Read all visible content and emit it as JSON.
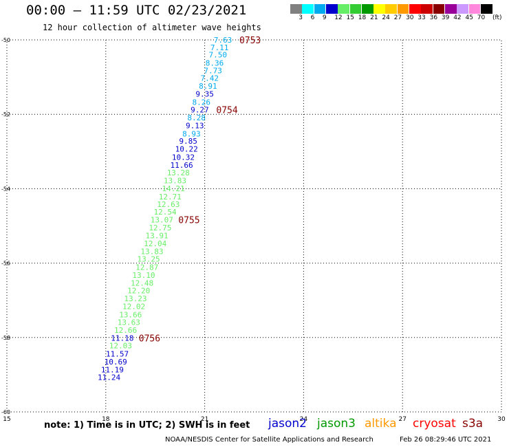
{
  "header": {
    "title": "00:00 – 11:59 UTC 02/23/2021",
    "subtitle": "12 hour collection of altimeter wave heights"
  },
  "legend": {
    "colors": [
      "#808080",
      "#00ffff",
      "#00aaee",
      "#0000cc",
      "#66ee66",
      "#33cc33",
      "#009900",
      "#ffff00",
      "#ffcc00",
      "#ff9900",
      "#ff0000",
      "#cc0000",
      "#880000",
      "#990099",
      "#cc99ff",
      "#ff88dd",
      "#000000"
    ],
    "labels": [
      "3",
      "6",
      "9",
      "12",
      "15",
      "18",
      "21",
      "24",
      "27",
      "30",
      "33",
      "36",
      "39",
      "42",
      "45",
      "70"
    ],
    "unit": "(ft)"
  },
  "footer": {
    "note": "note:  1) Time is in UTC;  2) SWH is in feet",
    "satellites": [
      {
        "name": "jason2",
        "color": "#0000cc"
      },
      {
        "name": "jason3",
        "color": "#009900"
      },
      {
        "name": "altika",
        "color": "#ff9900"
      },
      {
        "name": "cryosat",
        "color": "#ff0000"
      },
      {
        "name": "s3a",
        "color": "#880000"
      }
    ],
    "credit": "NOAA/NESDIS Center for Satellite Applications and Research",
    "timestamp": "Feb 26 08:29:46 UTC 2021"
  },
  "chart_data": {
    "type": "scatter",
    "title": "00:00 – 11:59 UTC 02/23/2021",
    "subtitle": "12 hour collection of altimeter wave heights",
    "xlim": [
      15,
      30
    ],
    "ylim": [
      -60,
      -50
    ],
    "xticks": [
      "15",
      "18",
      "21",
      "24",
      "27",
      "30"
    ],
    "yticks": [
      "-50",
      "-52",
      "-54",
      "-56",
      "-58",
      "-60"
    ],
    "grid": true,
    "points": [
      {
        "x": 21.55,
        "y": -50.0,
        "label": "7.63",
        "color": "#00aaee"
      },
      {
        "x": 21.45,
        "y": -50.2,
        "label": "7.11",
        "color": "#00aaee"
      },
      {
        "x": 21.4,
        "y": -50.4,
        "label": "7.50",
        "color": "#00aaee"
      },
      {
        "x": 21.3,
        "y": -50.62,
        "label": "8.36",
        "color": "#00aaee"
      },
      {
        "x": 21.25,
        "y": -50.82,
        "label": "7.73",
        "color": "#00aaee"
      },
      {
        "x": 21.15,
        "y": -51.03,
        "label": "7.42",
        "color": "#00aaee"
      },
      {
        "x": 21.1,
        "y": -51.24,
        "label": "8.91",
        "color": "#00aaee"
      },
      {
        "x": 21.0,
        "y": -51.45,
        "label": "9.35",
        "color": "#0000cc"
      },
      {
        "x": 20.9,
        "y": -51.67,
        "label": "8.26",
        "color": "#00aaee"
      },
      {
        "x": 20.85,
        "y": -51.88,
        "label": "9.27",
        "color": "#0000cc"
      },
      {
        "x": 20.75,
        "y": -52.09,
        "label": "8.28",
        "color": "#00aaee"
      },
      {
        "x": 20.7,
        "y": -52.3,
        "label": "9.13",
        "color": "#0000cc"
      },
      {
        "x": 20.6,
        "y": -52.52,
        "label": "8.93",
        "color": "#00aaee"
      },
      {
        "x": 20.5,
        "y": -52.72,
        "label": "9.85",
        "color": "#0000cc"
      },
      {
        "x": 20.45,
        "y": -52.93,
        "label": "10.22",
        "color": "#0000cc"
      },
      {
        "x": 20.35,
        "y": -53.15,
        "label": "10.32",
        "color": "#0000cc"
      },
      {
        "x": 20.3,
        "y": -53.36,
        "label": "11.66",
        "color": "#0000cc"
      },
      {
        "x": 20.2,
        "y": -53.57,
        "label": "13.28",
        "color": "#66ee66"
      },
      {
        "x": 20.1,
        "y": -53.78,
        "label": "13.83",
        "color": "#66ee66"
      },
      {
        "x": 20.05,
        "y": -53.99,
        "label": "14.21",
        "color": "#66ee66"
      },
      {
        "x": 19.95,
        "y": -54.21,
        "label": "12.71",
        "color": "#66ee66"
      },
      {
        "x": 19.9,
        "y": -54.42,
        "label": "12.63",
        "color": "#66ee66"
      },
      {
        "x": 19.8,
        "y": -54.62,
        "label": "12.54",
        "color": "#66ee66"
      },
      {
        "x": 19.7,
        "y": -54.83,
        "label": "13.07",
        "color": "#66ee66"
      },
      {
        "x": 19.65,
        "y": -55.05,
        "label": "12.75",
        "color": "#66ee66"
      },
      {
        "x": 19.55,
        "y": -55.26,
        "label": "13.91",
        "color": "#66ee66"
      },
      {
        "x": 19.5,
        "y": -55.47,
        "label": "12.04",
        "color": "#66ee66"
      },
      {
        "x": 19.4,
        "y": -55.68,
        "label": "13.83",
        "color": "#66ee66"
      },
      {
        "x": 19.3,
        "y": -55.89,
        "label": "13.25",
        "color": "#66ee66"
      },
      {
        "x": 19.25,
        "y": -56.11,
        "label": "12.87",
        "color": "#66ee66"
      },
      {
        "x": 19.15,
        "y": -56.32,
        "label": "13.10",
        "color": "#66ee66"
      },
      {
        "x": 19.1,
        "y": -56.53,
        "label": "12.48",
        "color": "#66ee66"
      },
      {
        "x": 19.0,
        "y": -56.74,
        "label": "12.20",
        "color": "#66ee66"
      },
      {
        "x": 18.9,
        "y": -56.95,
        "label": "13.23",
        "color": "#66ee66"
      },
      {
        "x": 18.85,
        "y": -57.16,
        "label": "12.02",
        "color": "#66ee66"
      },
      {
        "x": 18.75,
        "y": -57.38,
        "label": "13.66",
        "color": "#66ee66"
      },
      {
        "x": 18.7,
        "y": -57.59,
        "label": "13.63",
        "color": "#66ee66"
      },
      {
        "x": 18.6,
        "y": -57.8,
        "label": "12.66",
        "color": "#66ee66"
      },
      {
        "x": 18.5,
        "y": -58.01,
        "label": "11.18",
        "color": "#0000cc"
      },
      {
        "x": 18.45,
        "y": -58.22,
        "label": "12.03",
        "color": "#66ee66"
      },
      {
        "x": 18.35,
        "y": -58.44,
        "label": "11.57",
        "color": "#0000cc"
      },
      {
        "x": 18.3,
        "y": -58.65,
        "label": "10.69",
        "color": "#0000cc"
      },
      {
        "x": 18.2,
        "y": -58.86,
        "label": "11.19",
        "color": "#0000cc"
      },
      {
        "x": 18.1,
        "y": -59.07,
        "label": "11.24",
        "color": "#0000cc"
      }
    ],
    "time_marks": [
      {
        "label": "0753",
        "x": 21.55,
        "y": -50.0,
        "color": "#880000"
      },
      {
        "label": "0754",
        "x": 20.85,
        "y": -51.88,
        "color": "#880000"
      },
      {
        "label": "0755",
        "x": 19.7,
        "y": -54.83,
        "color": "#880000"
      },
      {
        "label": "0756",
        "x": 18.5,
        "y": -58.01,
        "color": "#880000"
      }
    ]
  }
}
